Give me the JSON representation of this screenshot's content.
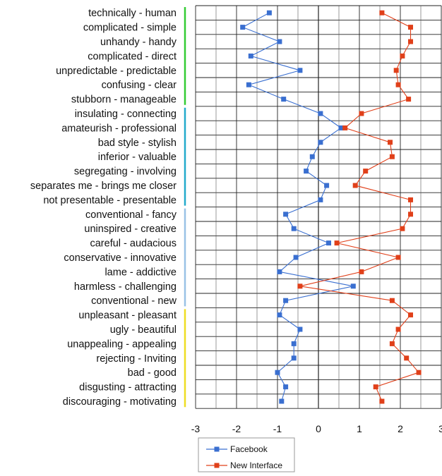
{
  "chart_data": {
    "type": "line",
    "title": "",
    "xlabel": "",
    "ylabel": "",
    "xlim": [
      -3,
      3
    ],
    "xticks": [
      -3,
      -2,
      -1,
      0,
      1,
      2,
      3
    ],
    "grid": true,
    "legend_position": "bottom",
    "categories": [
      "technically - human",
      "complicated - simple",
      "unhandy - handy",
      "complicated - direct",
      "unpredictable - predictable",
      "confusing - clear",
      "stubborn - manageable",
      "insulating - connecting",
      "amateurish - professional",
      "bad style - stylish",
      "inferior - valuable",
      "segregating - involving",
      "separates me - brings me closer",
      "not presentable - presentable",
      "conventional - fancy",
      "uninspired - creative",
      "careful - audacious",
      "conservative - innovative",
      "lame - addictive",
      "harmless - challenging",
      "conventional - new",
      "unpleasant - pleasant",
      "ugly - beautiful",
      "unappealing - appealing",
      "rejecting - Inviting",
      "bad - good",
      "disgusting - attracting",
      "discouraging - motivating"
    ],
    "groups": [
      {
        "start": 0,
        "end": 6,
        "color": "#33cc33"
      },
      {
        "start": 7,
        "end": 13,
        "color": "#22aacc"
      },
      {
        "start": 14,
        "end": 20,
        "color": "#99c2e6"
      },
      {
        "start": 21,
        "end": 27,
        "color": "#eedd22"
      }
    ],
    "series": [
      {
        "name": "Facebook",
        "color": "#3a6fd0",
        "values": [
          -1.2,
          -1.85,
          -0.95,
          -1.65,
          -0.45,
          -1.7,
          -0.85,
          0.05,
          0.55,
          0.05,
          -0.15,
          -0.3,
          0.2,
          0.05,
          -0.8,
          -0.6,
          0.25,
          -0.55,
          -0.95,
          0.85,
          -0.8,
          -0.95,
          -0.45,
          -0.6,
          -0.6,
          -1.0,
          -0.8,
          -0.9
        ]
      },
      {
        "name": "New Interface",
        "color": "#e0401a",
        "values": [
          1.55,
          2.25,
          2.25,
          2.05,
          1.9,
          1.95,
          2.2,
          1.05,
          0.65,
          1.75,
          1.8,
          1.15,
          0.9,
          2.25,
          2.25,
          2.05,
          0.45,
          1.95,
          1.05,
          -0.45,
          1.8,
          2.25,
          1.95,
          1.8,
          2.15,
          2.45,
          1.4,
          1.55
        ]
      }
    ]
  }
}
